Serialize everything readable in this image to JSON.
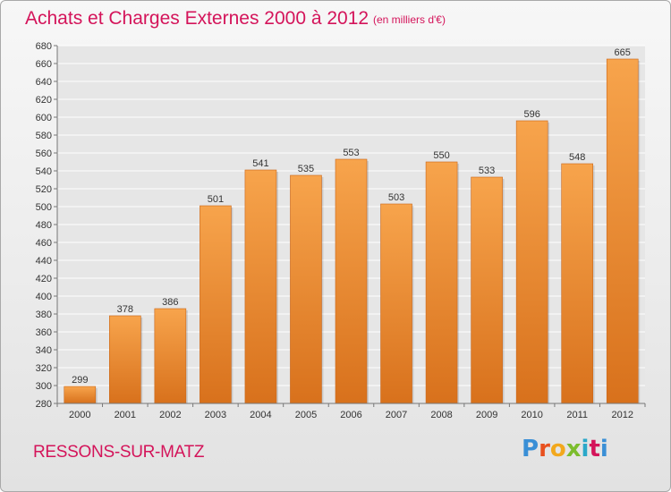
{
  "header": {
    "title": "Achats et Charges Externes 2000 à 2012",
    "unit_note": "(en milliers d'€)"
  },
  "footer": {
    "commune": "RESSONS-SUR-MATZ",
    "brand": "Proxiti"
  },
  "colors": {
    "accent_text": "#d4145a",
    "bar_top": "#f7a44c",
    "bar_bottom": "#d8711c",
    "grid": "#ffffff"
  },
  "chart_data": {
    "type": "bar",
    "title": "Achats et Charges Externes 2000 à 2012",
    "subtitle": "(en milliers d'€)",
    "xlabel": "",
    "ylabel": "",
    "categories": [
      "2000",
      "2001",
      "2002",
      "2003",
      "2004",
      "2005",
      "2006",
      "2007",
      "2008",
      "2009",
      "2010",
      "2011",
      "2012"
    ],
    "values": [
      299,
      378,
      386,
      501,
      541,
      535,
      553,
      503,
      550,
      533,
      596,
      548,
      665
    ],
    "ylim": [
      280,
      680
    ],
    "yticks": [
      280,
      300,
      320,
      340,
      360,
      380,
      400,
      420,
      440,
      460,
      480,
      500,
      520,
      540,
      560,
      580,
      600,
      620,
      640,
      660,
      680
    ],
    "grid": true,
    "data_labels": true
  }
}
